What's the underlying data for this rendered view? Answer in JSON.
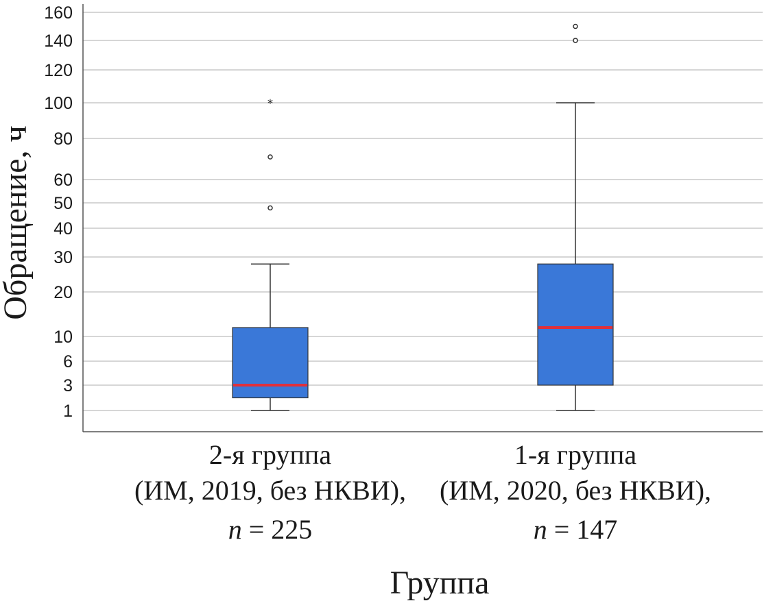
{
  "chart_data": {
    "type": "boxplot",
    "xlabel": "Группа",
    "ylabel": "Обращение, ч",
    "y_ticks": [
      1,
      3,
      6,
      10,
      20,
      30,
      40,
      50,
      60,
      80,
      100,
      120,
      140,
      160
    ],
    "ylim": [
      1,
      160
    ],
    "grid": true,
    "colors": {
      "box": "#3a78d8",
      "median": "#e0303a",
      "grid": "#bdbdbd",
      "axis": "#555555"
    },
    "groups": [
      {
        "label_lines": [
          "2-я группа",
          "(ИМ, 2019, без НКВИ),"
        ],
        "n_prefix": "n",
        "n_suffix": " = 225",
        "whisker_low": 1,
        "q1": 2,
        "median": 3,
        "q3": 12,
        "whisker_high": 28,
        "outliers": [
          48,
          71
        ],
        "extremes": [
          100
        ]
      },
      {
        "label_lines": [
          "1-я группа",
          "(ИМ, 2020, без НКВИ),"
        ],
        "n_prefix": "n",
        "n_suffix": " = 147",
        "whisker_low": 1,
        "q1": 3,
        "median": 12,
        "q3": 28,
        "whisker_high": 100,
        "outliers": [
          140,
          140,
          150
        ],
        "extremes": []
      }
    ]
  }
}
